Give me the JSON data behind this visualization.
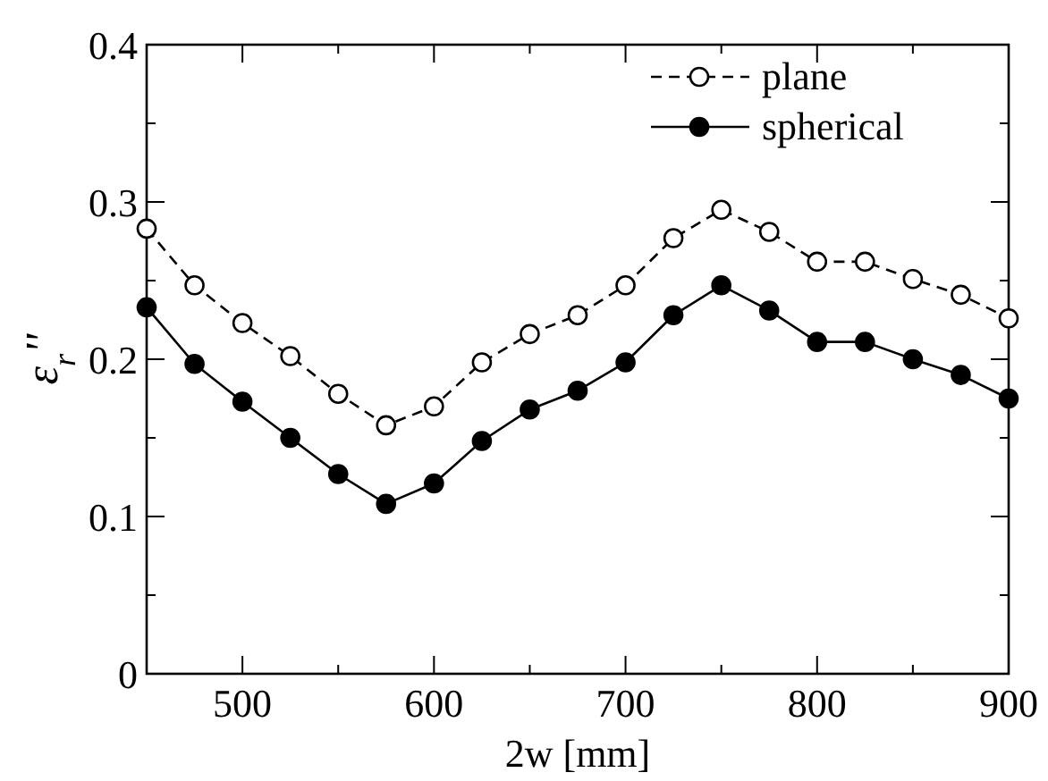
{
  "chart_data": {
    "type": "line",
    "xlabel": "2w [mm]",
    "ylabel": "ε$_{r}$''",
    "x": [
      450,
      475,
      500,
      525,
      550,
      575,
      600,
      625,
      650,
      675,
      700,
      725,
      750,
      775,
      800,
      825,
      850,
      875,
      900
    ],
    "xlim": [
      450,
      900
    ],
    "xticks": [
      {
        "value": 450,
        "label": null
      },
      500,
      {
        "value": 550,
        "label": null
      },
      600,
      {
        "value": 650,
        "label": null
      },
      700,
      {
        "value": 750,
        "label": null
      },
      800,
      {
        "value": 850,
        "label": null
      },
      900
    ],
    "ylim": [
      0,
      0.4
    ],
    "yticks": [
      0,
      {
        "value": 0.05,
        "label": null
      },
      0.1,
      {
        "value": 0.15,
        "label": null
      },
      0.2,
      {
        "value": 0.25,
        "label": null
      },
      0.3,
      {
        "value": 0.35,
        "label": null
      },
      0.4
    ],
    "grid": false,
    "legend": "top right",
    "series": [
      {
        "name": "plane",
        "color": "#000000",
        "marker": "circle",
        "line_style": "dashed",
        "values": [
          0.283,
          0.247,
          0.223,
          0.202,
          0.178,
          0.158,
          0.17,
          0.198,
          0.216,
          0.228,
          0.247,
          0.277,
          0.295,
          0.281,
          0.262,
          0.262,
          0.251,
          0.241,
          0.226
        ]
      },
      {
        "name": "spherical",
        "color": "#000000",
        "marker": "circle",
        "line_style": "solid",
        "values": [
          0.233,
          0.197,
          0.173,
          0.15,
          0.127,
          0.108,
          0.121,
          0.148,
          0.168,
          0.18,
          0.198,
          0.228,
          0.247,
          0.231,
          0.211,
          0.211,
          0.2,
          0.19,
          0.175
        ]
      }
    ]
  }
}
